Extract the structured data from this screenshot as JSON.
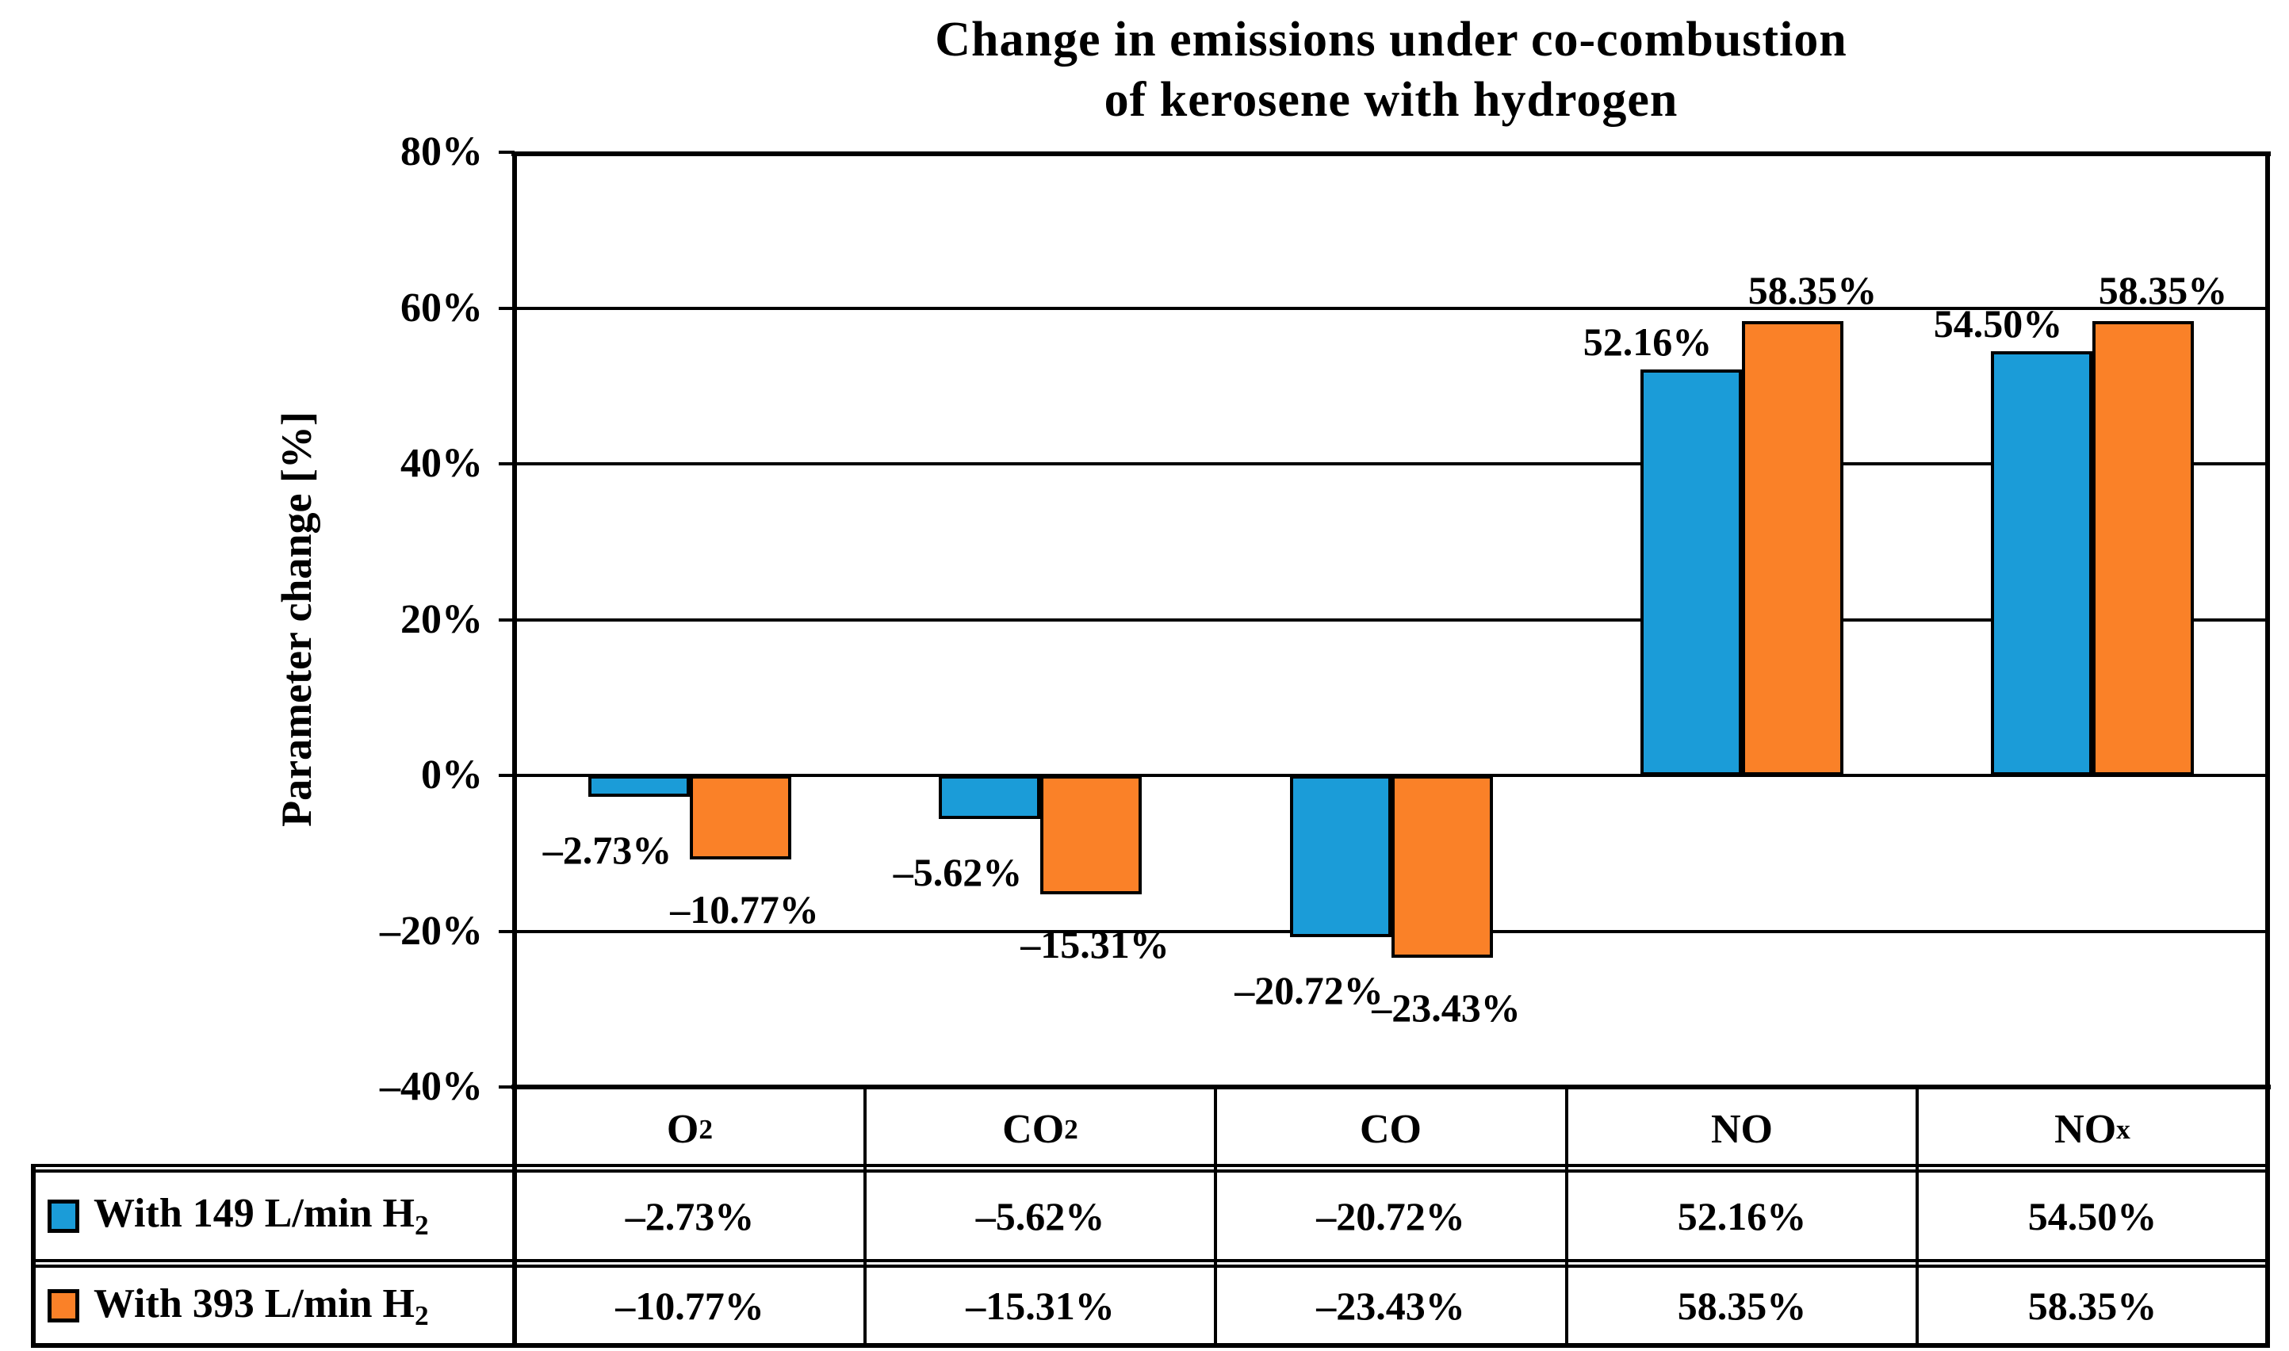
{
  "figure": {
    "title_line1": "Change in emissions under co-combustion",
    "title_line2": "of kerosene with hydrogen"
  },
  "y_axis": {
    "label": "Parameter change [%]",
    "tick_labels": [
      "80%",
      "60%",
      "40%",
      "20%",
      "0%",
      "–20%",
      "–40%"
    ],
    "tick_values": [
      80,
      60,
      40,
      20,
      0,
      -20,
      -40
    ]
  },
  "chart_data": {
    "type": "bar",
    "title": "Change in emissions under co-combustion of kerosene with hydrogen",
    "xlabel": "",
    "ylabel": "Parameter change [%]",
    "ylim": [
      -40,
      80
    ],
    "ytick_interval": 20,
    "grid": true,
    "legend_position": "data-table-left",
    "categories": [
      "O2",
      "CO2",
      "CO",
      "NO",
      "NOx"
    ],
    "category_display": [
      {
        "base": "O",
        "sub": "2"
      },
      {
        "base": "CO",
        "sub": "2"
      },
      {
        "base": "CO",
        "sub": ""
      },
      {
        "base": "NO",
        "sub": ""
      },
      {
        "base": "NO",
        "sub": "x"
      }
    ],
    "series": [
      {
        "name": "With 149 L/min H2",
        "legend_display": {
          "base": "With 149 L/min H",
          "sub": "2"
        },
        "color": "#1B9CD8",
        "values": [
          -2.73,
          -5.62,
          -20.72,
          52.16,
          54.5
        ],
        "labels": [
          "–2.73%",
          "–5.62%",
          "–20.72%",
          "52.16%",
          "54.50%"
        ]
      },
      {
        "name": "With 393 L/min H2",
        "legend_display": {
          "base": "With 393 L/min H",
          "sub": "2"
        },
        "color": "#FA8128",
        "values": [
          -10.77,
          -15.31,
          -23.43,
          58.35,
          58.35
        ],
        "labels": [
          "–10.77%",
          "–15.31%",
          "–23.43%",
          "58.35%",
          "58.35%"
        ]
      }
    ]
  }
}
